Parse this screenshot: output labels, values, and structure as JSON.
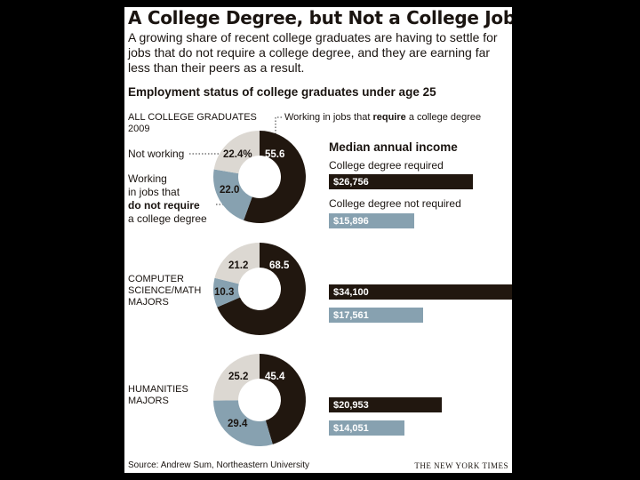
{
  "title": "A College Degree, but Not a College Job",
  "subtitle": "A growing share of recent college graduates are having to settle for jobs that do not require a college degree, and they are earning far less than their peers as a result.",
  "section_title": "Employment status of college graduates under age 25",
  "legend_require": "Working in jobs that require a college degree",
  "legend_require_parts": [
    "Working in jobs that ",
    "require",
    " a college degree"
  ],
  "label_not_working": "Not working",
  "label_not_require_lines": [
    "Working",
    "in jobs that",
    "do not require",
    "a college degree"
  ],
  "income_title": "Median annual income",
  "income_label_required": "College degree required",
  "income_label_not_required": "College degree not required",
  "source": "Source: Andrew Sum, Northeastern University",
  "credit": "THE NEW YORK TIMES",
  "colors": {
    "require": "#21170f",
    "not_require": "#87a1b0",
    "not_working": "#dcd8d2"
  },
  "chart_data": [
    {
      "type": "pie",
      "group_lines": [
        "ALL COLLEGE GRADUATES",
        "2009"
      ],
      "slices": [
        {
          "name": "Working in jobs that require a college degree",
          "value": 55.6,
          "label": "55.6"
        },
        {
          "name": "Working in jobs that do not require a college degree",
          "value": 22.0,
          "label": "22.0"
        },
        {
          "name": "Not working",
          "value": 22.4,
          "label": "22.4%"
        }
      ]
    },
    {
      "type": "bar",
      "title": "Median annual income",
      "categories": [
        "College degree required",
        "College degree not required"
      ],
      "values": [
        26756,
        15896
      ],
      "labels": [
        "$26,756",
        "$15,896"
      ]
    },
    {
      "type": "pie",
      "group_lines": [
        "COMPUTER",
        "SCIENCE/MATH",
        "MAJORS"
      ],
      "slices": [
        {
          "name": "Working in jobs that require a college degree",
          "value": 68.5,
          "label": "68.5"
        },
        {
          "name": "Working in jobs that do not require a college degree",
          "value": 10.3,
          "label": "10.3"
        },
        {
          "name": "Not working",
          "value": 21.2,
          "label": "21.2"
        }
      ]
    },
    {
      "type": "bar",
      "categories": [
        "College degree required",
        "College degree not required"
      ],
      "values": [
        34100,
        17561
      ],
      "labels": [
        "$34,100",
        "$17,561"
      ]
    },
    {
      "type": "pie",
      "group_lines": [
        "HUMANITIES",
        "MAJORS"
      ],
      "slices": [
        {
          "name": "Working in jobs that require a college degree",
          "value": 45.4,
          "label": "45.4"
        },
        {
          "name": "Working in jobs that do not require a college degree",
          "value": 29.4,
          "label": "29.4"
        },
        {
          "name": "Not working",
          "value": 25.2,
          "label": "25.2"
        }
      ]
    },
    {
      "type": "bar",
      "categories": [
        "College degree required",
        "College degree not required"
      ],
      "values": [
        20953,
        14051
      ],
      "labels": [
        "$20,953",
        "$14,051"
      ]
    }
  ]
}
